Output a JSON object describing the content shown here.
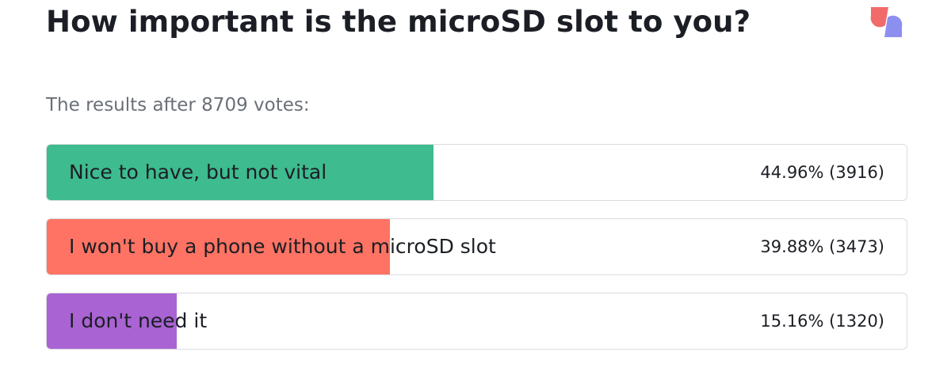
{
  "title": "How important is the microSD slot to you?",
  "subtitle": "The results after 8709 votes:",
  "logo": {
    "icon": "brand-logo-icon",
    "colors": [
      "#f26b6b",
      "#8c8ff0"
    ]
  },
  "chart_data": {
    "type": "bar",
    "orientation": "horizontal",
    "categories": [
      "Nice to have, but not vital",
      "I won't buy a phone without a microSD slot",
      "I don't need it"
    ],
    "values": [
      44.96,
      39.88,
      15.16
    ],
    "counts": [
      3916,
      3473,
      1320
    ],
    "labels": [
      "44.96% (3916)",
      "39.88% (3473)",
      "15.16% (1320)"
    ],
    "colors": [
      "#3ebb8f",
      "#fe7363",
      "#a963d2"
    ],
    "total_votes": 8709,
    "xlim": [
      0,
      100
    ]
  }
}
